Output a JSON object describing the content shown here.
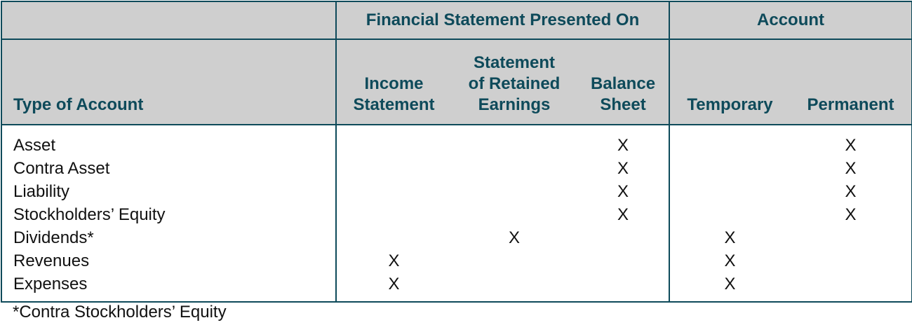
{
  "headers": {
    "group_financial_statement": "Financial Statement Presented On",
    "group_account": "Account",
    "type_of_account": "Type of Account",
    "income_statement": [
      "Income",
      "Statement"
    ],
    "retained_earnings": [
      "Statement",
      "of Retained",
      "Earnings"
    ],
    "balance_sheet": [
      "Balance",
      "Sheet"
    ],
    "temporary": "Temporary",
    "permanent": "Permanent"
  },
  "rows": [
    {
      "label": "Asset",
      "income": "",
      "retained": "",
      "balance": "X",
      "temporary": "",
      "permanent": "X"
    },
    {
      "label": "Contra Asset",
      "income": "",
      "retained": "",
      "balance": "X",
      "temporary": "",
      "permanent": "X"
    },
    {
      "label": "Liability",
      "income": "",
      "retained": "",
      "balance": "X",
      "temporary": "",
      "permanent": "X"
    },
    {
      "label": "Stockholders’ Equity",
      "income": "",
      "retained": "",
      "balance": "X",
      "temporary": "",
      "permanent": "X"
    },
    {
      "label": "Dividends*",
      "income": "",
      "retained": "X",
      "balance": "",
      "temporary": "X",
      "permanent": ""
    },
    {
      "label": "Revenues",
      "income": "X",
      "retained": "",
      "balance": "",
      "temporary": "X",
      "permanent": ""
    },
    {
      "label": "Expenses",
      "income": "X",
      "retained": "",
      "balance": "",
      "temporary": "X",
      "permanent": ""
    }
  ],
  "footnote": "*Contra Stockholders’ Equity",
  "colors": {
    "header_bg": "#cfcfcf",
    "header_text": "#0e4a5a",
    "border": "#0e4a5a"
  }
}
